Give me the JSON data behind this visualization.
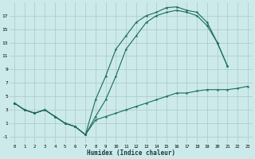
{
  "xlabel": "Humidex (Indice chaleur)",
  "bg_color": "#cceaea",
  "grid_color": "#aac8c8",
  "line_color": "#1a6b5a",
  "line_top": {
    "x": [
      0,
      1,
      2,
      3,
      4,
      5,
      6,
      7,
      8,
      9,
      10,
      11,
      12,
      13,
      14,
      15,
      16,
      17,
      18,
      19,
      20,
      21
    ],
    "y": [
      4,
      3,
      2.5,
      3,
      2,
      1,
      0.5,
      -0.7,
      4.5,
      8,
      12,
      14,
      16,
      17,
      17.5,
      18.2,
      18.3,
      17.8,
      17.5,
      16,
      13,
      9.5
    ]
  },
  "line_mid": {
    "x": [
      0,
      1,
      2,
      3,
      4,
      5,
      6,
      7,
      8,
      9,
      10,
      11,
      12,
      13,
      14,
      15,
      16,
      17,
      18,
      19,
      20,
      21
    ],
    "y": [
      4,
      3,
      2.5,
      3,
      2,
      1,
      0.5,
      -0.7,
      2.0,
      4.5,
      8,
      12,
      14,
      16,
      17,
      17.5,
      17.8,
      17.5,
      17.0,
      15.5,
      13,
      9.5
    ]
  },
  "line_bot": {
    "x": [
      0,
      1,
      2,
      3,
      4,
      5,
      6,
      7,
      8,
      9,
      10,
      11,
      12,
      13,
      14,
      15,
      16,
      17,
      18,
      19,
      20,
      21,
      22,
      23
    ],
    "y": [
      4,
      3,
      2.5,
      3,
      2,
      1,
      0.5,
      -0.7,
      1.5,
      2.0,
      2.5,
      3.0,
      3.5,
      4.0,
      4.5,
      5.0,
      5.5,
      5.5,
      5.8,
      6.0,
      6.0,
      6.0,
      6.2,
      6.5
    ]
  },
  "yticks": [
    -1,
    1,
    3,
    5,
    7,
    9,
    11,
    13,
    15,
    17
  ],
  "xticks": [
    0,
    1,
    2,
    3,
    4,
    5,
    6,
    7,
    8,
    9,
    10,
    11,
    12,
    13,
    14,
    15,
    16,
    17,
    18,
    19,
    20,
    21,
    22,
    23
  ],
  "xlim": [
    -0.5,
    23.5
  ],
  "ylim": [
    -2.0,
    19.0
  ]
}
